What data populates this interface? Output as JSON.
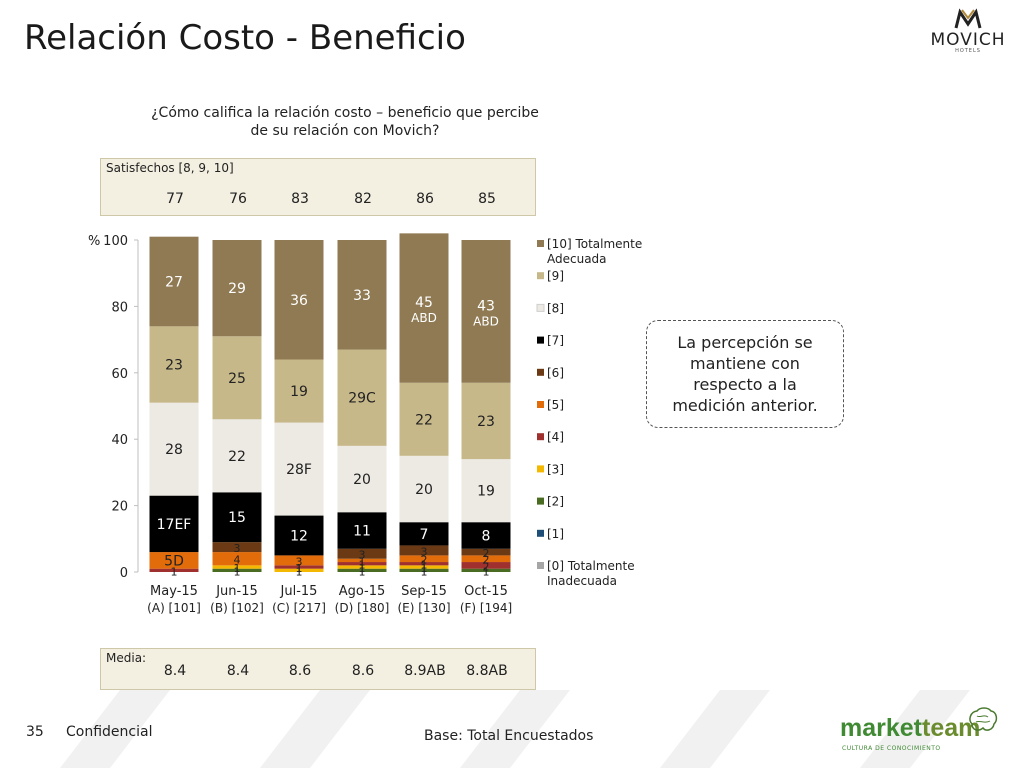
{
  "page": {
    "title": "Relación Costo - Beneficio",
    "brand": "MOVICH",
    "brand_sub": "HOTELS",
    "question_line1": "¿Cómo califica la relación costo – beneficio que percibe",
    "question_line2": "de su relación con Movich?",
    "satisfied_label": "Satisfechos [8, 9, 10]",
    "satisfied_values": [
      "77",
      "76",
      "83",
      "82",
      "86",
      "85"
    ],
    "media_label": "Media:",
    "media_values": [
      "8.4",
      "8.4",
      "8.6",
      "8.6",
      "8.9AB",
      "8.8AB"
    ],
    "annotation": "La percepción se mantiene con respecto a la medición anterior.",
    "page_number": "35",
    "confidential": "Confidencial",
    "base": "Base: Total Encuestados",
    "footer_brand_a": "market",
    "footer_brand_b": "team",
    "footer_brand_sub": "CULTURA DE CONOCIMIENTO"
  },
  "chart_data": {
    "type": "bar",
    "stacked": true,
    "ylabel": "%",
    "ylim": [
      0,
      100
    ],
    "yticks": [
      0,
      20,
      40,
      60,
      80,
      100
    ],
    "categories": [
      "May-15",
      "Jun-15",
      "Jul-15",
      "Ago-15",
      "Sep-15",
      "Oct-15"
    ],
    "category_sublabels": [
      "(A) [101]",
      "(B) [102]",
      "(C) [217]",
      "(D) [180]",
      "(E) [130]",
      "(F) [194]"
    ],
    "legend_position": "right",
    "series": [
      {
        "name": "[0] Totalmente Inadecuada",
        "color": "#a6a6a6",
        "values": [
          0,
          0,
          0,
          0,
          0,
          0
        ],
        "labels": [
          "",
          "",
          "",
          "",
          "",
          ""
        ]
      },
      {
        "name": "[1]",
        "color": "#1f4e79",
        "values": [
          0,
          0,
          0,
          0,
          0,
          0
        ],
        "labels": [
          "",
          "",
          "",
          "",
          "",
          ""
        ]
      },
      {
        "name": "[2]",
        "color": "#4a6b22",
        "values": [
          0,
          1,
          0,
          1,
          1,
          1
        ],
        "labels": [
          "",
          "1",
          "",
          "1",
          "1",
          "1"
        ]
      },
      {
        "name": "[3]",
        "color": "#f5b800",
        "values": [
          0,
          1,
          1,
          1,
          1,
          0
        ],
        "labels": [
          "",
          "1",
          "1",
          "1",
          "1",
          ""
        ]
      },
      {
        "name": "[4]",
        "color": "#a0302d",
        "values": [
          1,
          0,
          1,
          1,
          1,
          2
        ],
        "labels": [
          "1",
          "",
          "1",
          "1",
          "1",
          "2"
        ]
      },
      {
        "name": "[5]",
        "color": "#e36c0a",
        "values": [
          5,
          4,
          3,
          1,
          2,
          2
        ],
        "labels": [
          "5D",
          "4",
          "3",
          "1",
          "2",
          "2"
        ]
      },
      {
        "name": "[6]",
        "color": "#6b3a14",
        "values": [
          0,
          3,
          0,
          3,
          3,
          2
        ],
        "labels": [
          "",
          "3",
          "",
          "3",
          "3",
          "2"
        ]
      },
      {
        "name": "[7]",
        "color": "#000000",
        "values": [
          17,
          15,
          12,
          11,
          7,
          8
        ],
        "labels": [
          "17EF",
          "15",
          "12",
          "11",
          "7",
          "8"
        ]
      },
      {
        "name": "[8]",
        "color": "#ede9e3",
        "values": [
          28,
          22,
          28,
          20,
          20,
          19
        ],
        "labels": [
          "28",
          "22",
          "28F",
          "20",
          "20",
          "19"
        ]
      },
      {
        "name": "[9]",
        "color": "#c7b88a",
        "values": [
          23,
          25,
          19,
          29,
          22,
          23
        ],
        "labels": [
          "23",
          "25",
          "19",
          "29C",
          "22",
          "23"
        ]
      },
      {
        "name": "[10] Totalmente Adecuada",
        "color": "#8f7a53",
        "values": [
          27,
          29,
          36,
          33,
          45,
          43
        ],
        "labels": [
          "27",
          "29",
          "36",
          "33",
          "45 ABD",
          "43 ABD"
        ]
      }
    ]
  }
}
